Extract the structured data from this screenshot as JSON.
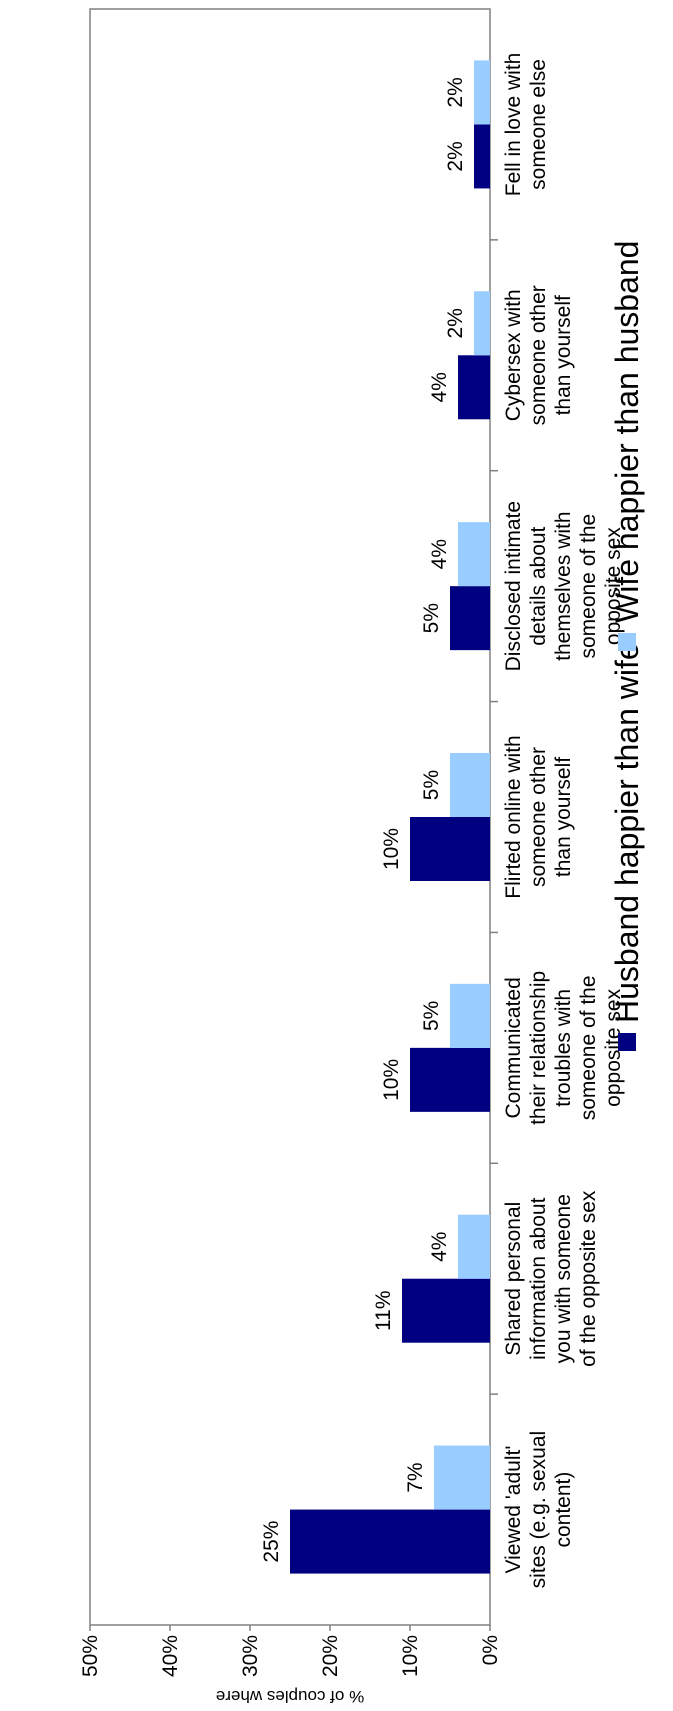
{
  "chart_data": {
    "type": "bar",
    "ylabel": "% of couples where",
    "ylim": [
      0,
      50
    ],
    "yticks": [
      "0%",
      "10%",
      "20%",
      "30%",
      "40%",
      "50%"
    ],
    "categories": [
      [
        "Viewed 'adult'",
        "sites (e.g. sexual",
        "content)"
      ],
      [
        "Shared personal",
        "information about",
        "you with someone",
        "of the opposite sex"
      ],
      [
        "Communicated",
        "their relationship",
        "troubles with",
        "someone of the",
        "opposite sex"
      ],
      [
        "Flirted online with",
        "someone other",
        "than yourself"
      ],
      [
        "Disclosed intimate",
        "details about",
        "themselves with",
        "someone of the",
        "opposite sex"
      ],
      [
        "Cybersex with",
        "someone other",
        "than yourself"
      ],
      [
        "Fell in love with",
        "someone else"
      ]
    ],
    "series": [
      {
        "name": "Husband happier than wife",
        "color": "#000080",
        "values": [
          25,
          11,
          10,
          10,
          5,
          4,
          2
        ],
        "labels": [
          "25%",
          "11%",
          "10%",
          "10%",
          "5%",
          "4%",
          "2%"
        ]
      },
      {
        "name": "Wife happier than husband",
        "color": "#99CCFF",
        "values": [
          7,
          4,
          5,
          5,
          4,
          2,
          2
        ],
        "labels": [
          "7%",
          "4%",
          "5%",
          "5%",
          "4%",
          "2%",
          "2%"
        ]
      }
    ],
    "legend_position": "top",
    "grid": false
  }
}
